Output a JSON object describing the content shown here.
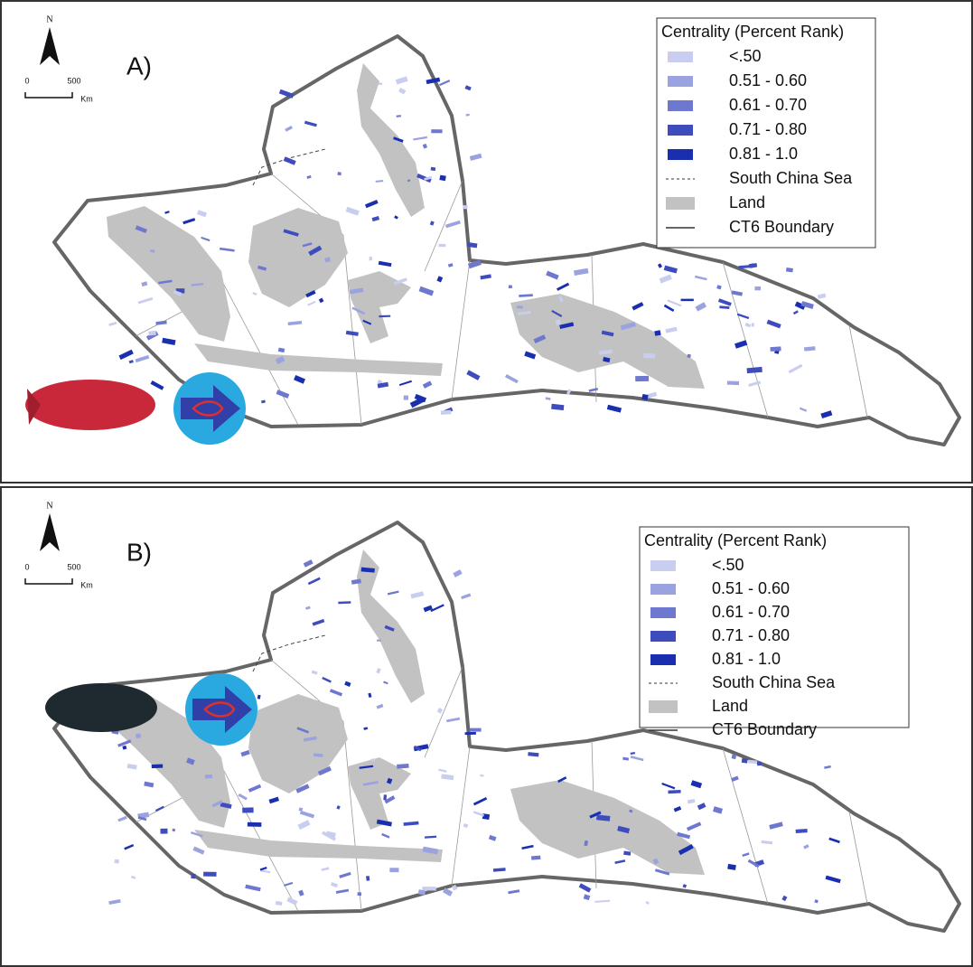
{
  "panels": [
    {
      "label": "A)",
      "north_label": "N",
      "scale_labels": [
        "0",
        "500",
        "Km"
      ],
      "legend": {
        "title": "Centrality (Percent Rank)",
        "items": [
          "<.50",
          "0.51 - 0.60",
          "0.61 - 0.70",
          "0.71 - 0.80",
          "0.81 - 1.0",
          "South China Sea",
          "Land",
          "CT6 Boundary"
        ]
      }
    },
    {
      "label": "B)",
      "north_label": "N",
      "scale_labels": [
        "0",
        "500",
        "Km"
      ],
      "legend": {
        "title": "Centrality (Percent Rank)",
        "items": [
          "<.50",
          "0.51 - 0.60",
          "0.61 - 0.70",
          "0.71 - 0.80",
          "0.81 - 1.0",
          "South China Sea",
          "Land",
          "CT6 Boundary"
        ]
      }
    }
  ]
}
